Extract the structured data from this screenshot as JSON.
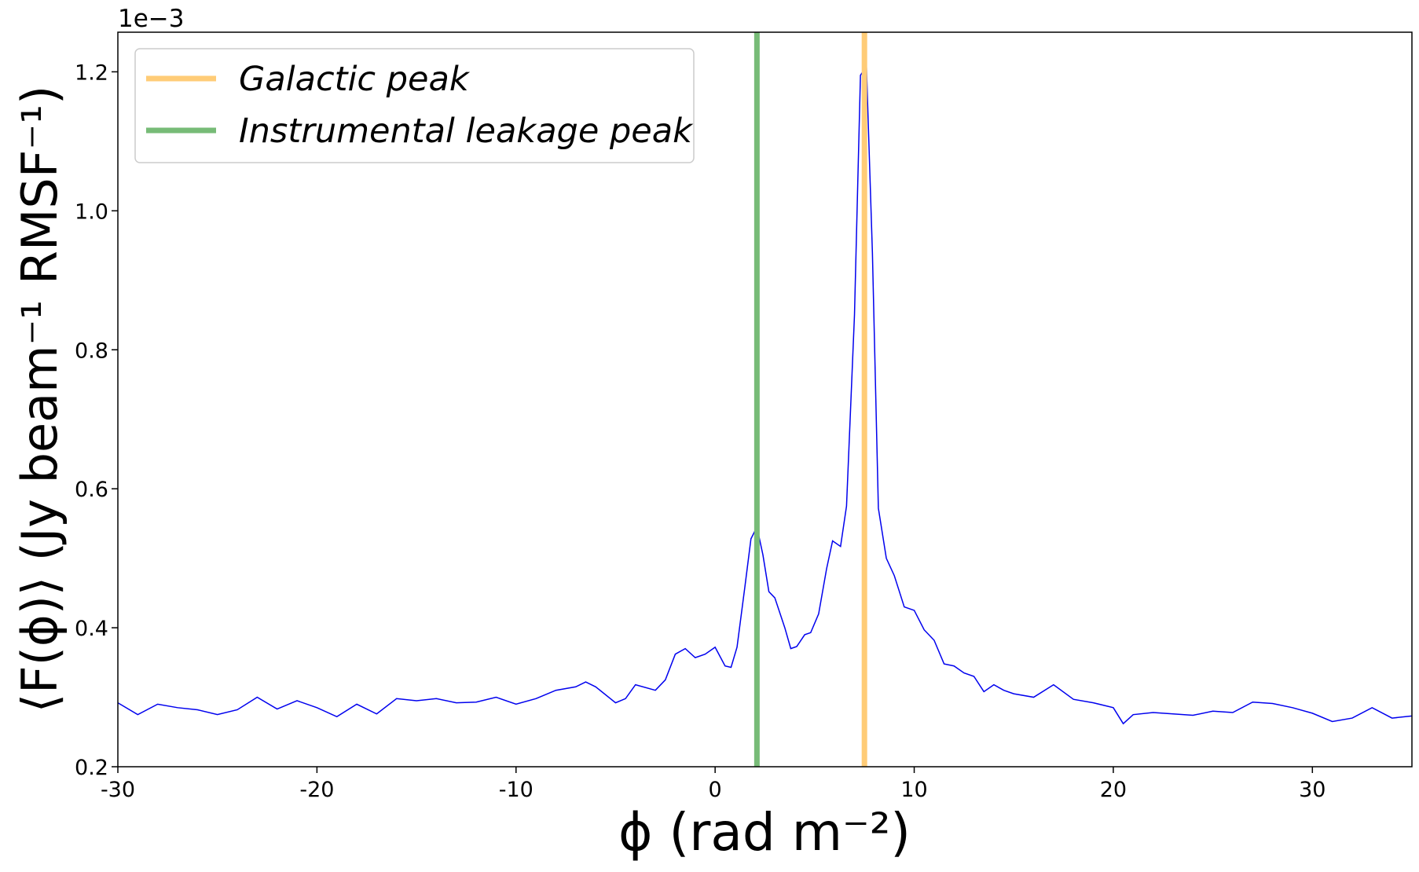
{
  "chart_data": {
    "type": "line",
    "xlabel": "ϕ (rad m⁻²)",
    "ylabel": "⟨F(ϕ)⟩ (Jy beam⁻¹ RMSF⁻¹)",
    "offset_text": "1e−3",
    "xlim": [
      -30,
      35
    ],
    "ylim": [
      0.2,
      1.257
    ],
    "xticks": [
      -30,
      -20,
      -10,
      0,
      10,
      20,
      30
    ],
    "yticks": [
      0.2,
      0.4,
      0.6,
      0.8,
      {
        "value": 1.0,
        "label": "1.0"
      },
      1.2
    ],
    "legend": "upper left",
    "series": [
      {
        "color": "#0000ee",
        "x": [
          -30,
          -29,
          -28,
          -27,
          -26,
          -25,
          -24,
          -23,
          -22,
          -21,
          -20,
          -19,
          -18,
          -17,
          -16,
          -15,
          -14,
          -13,
          -12,
          -11,
          -10,
          -9,
          -8,
          -7,
          -6.5,
          -6,
          -5,
          -4.5,
          -4,
          -3,
          -2.5,
          -2,
          -1.5,
          -1,
          -0.5,
          0,
          0.5,
          0.8,
          1.1,
          1.5,
          1.8,
          2.1,
          2.4,
          2.7,
          3,
          3.5,
          3.8,
          4.1,
          4.5,
          4.8,
          5.2,
          5.6,
          5.9,
          6.3,
          6.6,
          7,
          7.3,
          7.6,
          7.9,
          8.2,
          8.6,
          9,
          9.5,
          10,
          10.5,
          11,
          11.5,
          12,
          12.5,
          13,
          13.5,
          14,
          14.5,
          15,
          16,
          17,
          18,
          19,
          20,
          20.5,
          21,
          22,
          23,
          24,
          25,
          26,
          27,
          28,
          29,
          30,
          31,
          32,
          33,
          34,
          35
        ],
        "values": [
          0.292,
          0.275,
          0.29,
          0.285,
          0.282,
          0.275,
          0.282,
          0.3,
          0.283,
          0.295,
          0.285,
          0.272,
          0.29,
          0.276,
          0.298,
          0.295,
          0.298,
          0.292,
          0.293,
          0.3,
          0.29,
          0.298,
          0.31,
          0.315,
          0.322,
          0.315,
          0.292,
          0.298,
          0.318,
          0.31,
          0.325,
          0.362,
          0.37,
          0.357,
          0.362,
          0.372,
          0.345,
          0.343,
          0.372,
          0.46,
          0.528,
          0.545,
          0.505,
          0.452,
          0.443,
          0.4,
          0.37,
          0.373,
          0.39,
          0.393,
          0.42,
          0.485,
          0.525,
          0.517,
          0.575,
          0.85,
          1.195,
          1.208,
          0.94,
          0.572,
          0.5,
          0.475,
          0.43,
          0.425,
          0.397,
          0.382,
          0.348,
          0.345,
          0.335,
          0.33,
          0.308,
          0.318,
          0.31,
          0.305,
          0.3,
          0.318,
          0.297,
          0.292,
          0.285,
          0.262,
          0.275,
          0.278,
          0.276,
          0.274,
          0.28,
          0.278,
          0.293,
          0.291,
          0.285,
          0.277,
          0.265,
          0.27,
          0.285,
          0.27,
          0.273
        ]
      }
    ],
    "vlines": [
      {
        "name": "Galactic peak",
        "x": 7.5,
        "color": "#ffcc77"
      },
      {
        "name": "Instrumental leakage peak",
        "x": 2.1,
        "color": "#77bb77"
      }
    ]
  }
}
